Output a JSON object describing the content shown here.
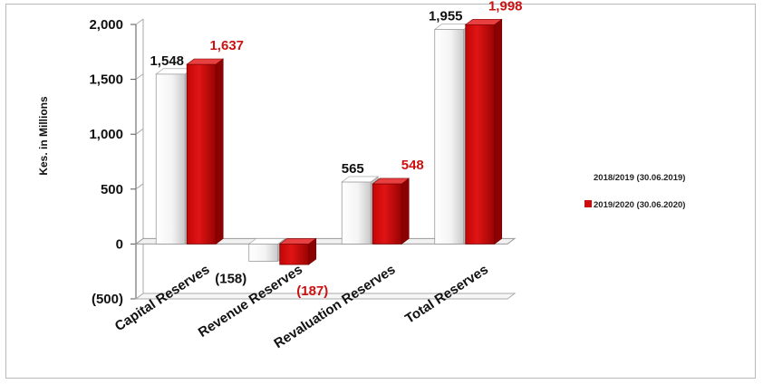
{
  "chart_data": {
    "type": "bar",
    "ylabel": "Kes. in Millions",
    "ylim": [
      -500,
      2000
    ],
    "yticks": [
      {
        "value": 2000,
        "label": "2,000"
      },
      {
        "value": 1500,
        "label": "1,500"
      },
      {
        "value": 1000,
        "label": "1,000"
      },
      {
        "value": 500,
        "label": "500"
      },
      {
        "value": 0,
        "label": "0"
      },
      {
        "value": -500,
        "label": "(500)"
      }
    ],
    "categories": [
      "Capital Reserves",
      "Revenue Reserves",
      "Revaluation Reserves",
      "Total Reserves"
    ],
    "series": [
      {
        "name": "2018/2019 (30.06.2019)",
        "color": "#ffffff",
        "values": [
          1548,
          -158,
          565,
          1955
        ],
        "labels": [
          "1,548",
          "(158)",
          "565",
          "1,955"
        ],
        "label_color": "#111111"
      },
      {
        "name": "2019/2020 (30.06.2020)",
        "color": "#d10a0a",
        "values": [
          1637,
          -187,
          548,
          1998
        ],
        "labels": [
          "1,637",
          "(187)",
          "548",
          "1,998"
        ],
        "label_color": "#cc1111"
      }
    ],
    "legend_position": "right",
    "grid": false
  }
}
